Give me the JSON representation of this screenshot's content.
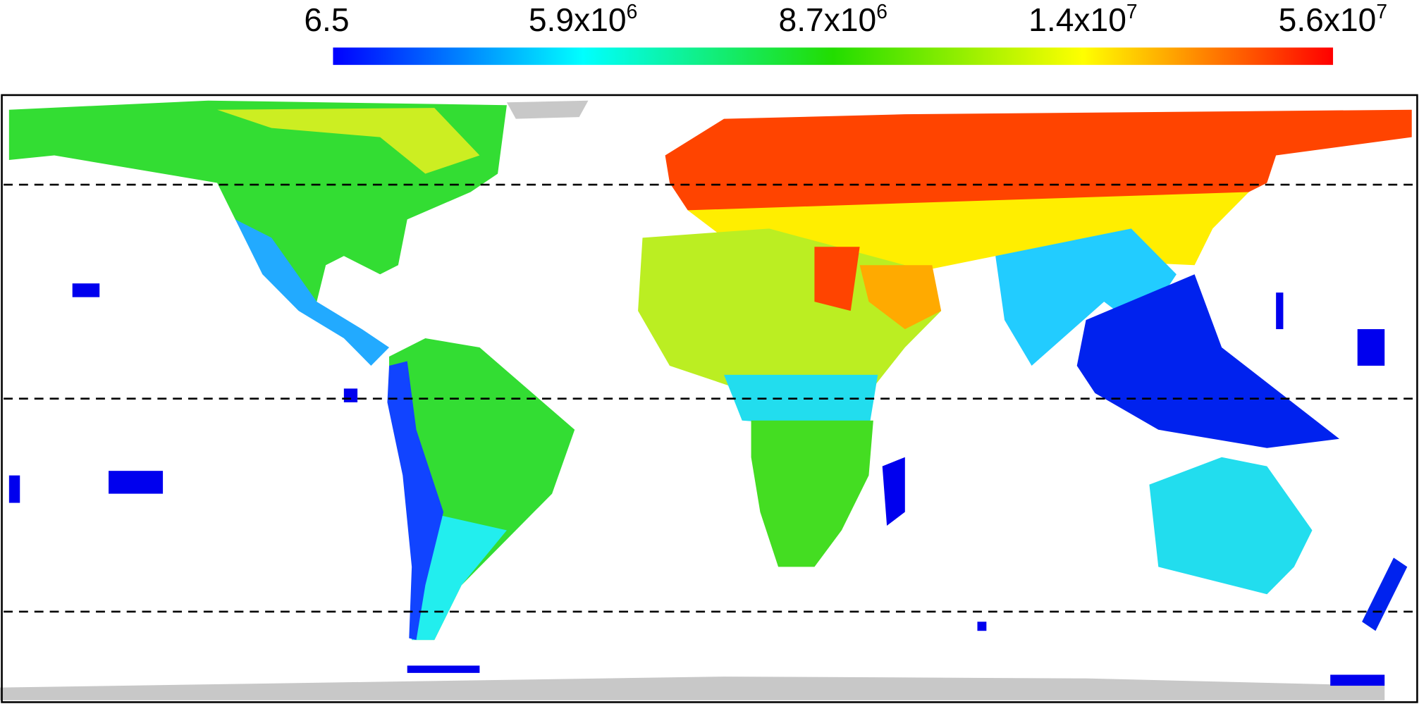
{
  "colorbar": {
    "ticks": [
      {
        "base": "6.5"
      },
      {
        "base": "5.9x10",
        "exponent": "6"
      },
      {
        "base": "8.7x10",
        "exponent": "6"
      },
      {
        "base": "1.4x10",
        "exponent": "7"
      },
      {
        "base": "5.6x10",
        "exponent": "7"
      }
    ]
  }
}
